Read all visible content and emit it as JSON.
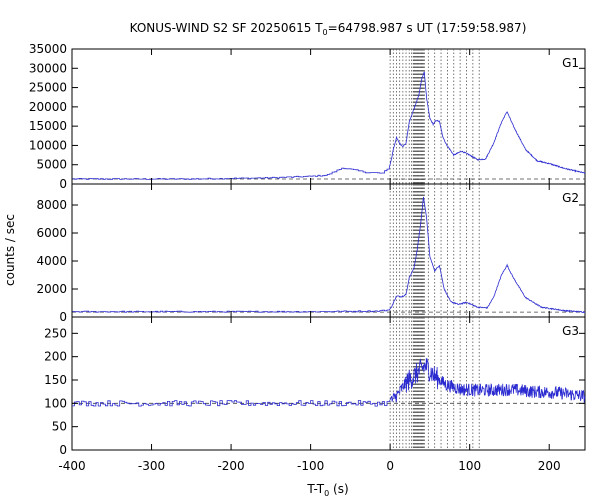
{
  "chart_data": {
    "type": "line",
    "title_main": "KONUS-WIND S2 SF 20250615 T",
    "title_sub": "0",
    "title_rest": "=64798.987 s UT (17:59:58.987)",
    "xlabel_main": "T-T",
    "xlabel_sub": "0",
    "xlabel_rest": " (s)",
    "ylabel": "counts / sec",
    "xlim": [
      -400,
      245
    ],
    "x_ticks": [
      -400,
      -300,
      -200,
      -100,
      0,
      100,
      200
    ],
    "x_tick_labels": [
      "-400",
      "-300",
      "-200",
      "-100",
      "0",
      "100",
      "200"
    ],
    "vertical_markers": [
      0,
      4,
      8,
      12,
      16,
      20,
      24,
      27,
      29,
      30,
      31,
      32,
      33,
      34,
      35,
      36,
      37,
      38,
      39,
      40,
      41,
      42,
      43,
      48,
      56,
      64,
      72,
      80,
      88,
      96,
      104,
      112
    ],
    "line_color": "#2a2ad0",
    "marker_color": "#555555",
    "panels": [
      {
        "name": "G1",
        "ylim": [
          0,
          35000
        ],
        "y_ticks": [
          0,
          5000,
          10000,
          15000,
          20000,
          25000,
          30000,
          35000
        ],
        "y_tick_labels": [
          "0",
          "5000",
          "10000",
          "15000",
          "20000",
          "25000",
          "30000",
          "35000"
        ],
        "background_level": 1300,
        "noise": 150,
        "points": [
          [
            -400,
            1300
          ],
          [
            -250,
            1300
          ],
          [
            -150,
            1600
          ],
          [
            -100,
            2000
          ],
          [
            -80,
            2300
          ],
          [
            -60,
            4200
          ],
          [
            -50,
            3800
          ],
          [
            -30,
            3000
          ],
          [
            -10,
            2800
          ],
          [
            0,
            4500
          ],
          [
            4,
            9000
          ],
          [
            8,
            12000
          ],
          [
            12,
            10500
          ],
          [
            16,
            9800
          ],
          [
            20,
            10500
          ],
          [
            24,
            16000
          ],
          [
            30,
            19500
          ],
          [
            36,
            23000
          ],
          [
            40,
            27500
          ],
          [
            43,
            29000
          ],
          [
            46,
            22000
          ],
          [
            50,
            17000
          ],
          [
            54,
            15500
          ],
          [
            58,
            16500
          ],
          [
            62,
            16200
          ],
          [
            66,
            12500
          ],
          [
            70,
            10500
          ],
          [
            80,
            7500
          ],
          [
            90,
            8500
          ],
          [
            100,
            7500
          ],
          [
            110,
            6300
          ],
          [
            120,
            6500
          ],
          [
            130,
            10500
          ],
          [
            140,
            16000
          ],
          [
            147,
            18800
          ],
          [
            155,
            15000
          ],
          [
            170,
            9000
          ],
          [
            185,
            6000
          ],
          [
            200,
            5300
          ],
          [
            220,
            4000
          ],
          [
            245,
            2800
          ]
        ]
      },
      {
        "name": "G2",
        "ylim": [
          0,
          9500
        ],
        "y_ticks": [
          0,
          2000,
          4000,
          6000,
          8000
        ],
        "y_tick_labels": [
          "0",
          "2000",
          "4000",
          "6000",
          "8000"
        ],
        "background_level": 350,
        "noise": 40,
        "points": [
          [
            -400,
            380
          ],
          [
            -100,
            380
          ],
          [
            -20,
            420
          ],
          [
            0,
            500
          ],
          [
            4,
            1000
          ],
          [
            8,
            1500
          ],
          [
            14,
            1450
          ],
          [
            20,
            1600
          ],
          [
            24,
            2800
          ],
          [
            30,
            3500
          ],
          [
            34,
            4800
          ],
          [
            38,
            6500
          ],
          [
            42,
            8600
          ],
          [
            46,
            7000
          ],
          [
            50,
            4300
          ],
          [
            56,
            3300
          ],
          [
            62,
            3700
          ],
          [
            68,
            2000
          ],
          [
            76,
            1100
          ],
          [
            86,
            900
          ],
          [
            96,
            1050
          ],
          [
            110,
            700
          ],
          [
            122,
            650
          ],
          [
            130,
            1400
          ],
          [
            140,
            3000
          ],
          [
            147,
            3700
          ],
          [
            155,
            2800
          ],
          [
            170,
            1400
          ],
          [
            190,
            700
          ],
          [
            220,
            450
          ],
          [
            245,
            350
          ]
        ]
      },
      {
        "name": "G3",
        "ylim": [
          0,
          285
        ],
        "y_ticks": [
          0,
          50,
          100,
          150,
          200,
          250
        ],
        "y_tick_labels": [
          "0",
          "50",
          "100",
          "150",
          "200",
          "250"
        ],
        "background_level": 100,
        "noise": 6,
        "points": [
          [
            -400,
            100
          ],
          [
            -10,
            100
          ],
          [
            0,
            102
          ],
          [
            10,
            120
          ],
          [
            20,
            145
          ],
          [
            30,
            158
          ],
          [
            40,
            175
          ],
          [
            45,
            180
          ],
          [
            55,
            160
          ],
          [
            70,
            140
          ],
          [
            90,
            130
          ],
          [
            110,
            128
          ],
          [
            130,
            128
          ],
          [
            150,
            130
          ],
          [
            180,
            125
          ],
          [
            210,
            123
          ],
          [
            245,
            115
          ]
        ]
      }
    ]
  }
}
